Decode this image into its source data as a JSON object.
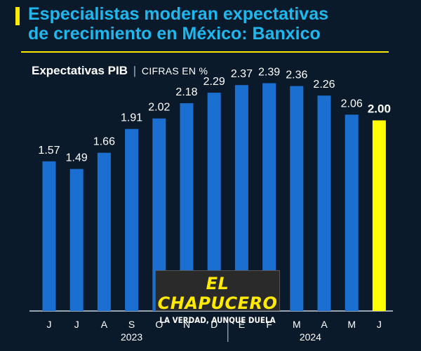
{
  "header": {
    "title_line1": "Especialistas moderan expectativas",
    "title_line2": "de crecimiento en México: Banxico",
    "subtitle": "Expectativas PIB",
    "separator": "|",
    "unit": "CIFRAS EN %"
  },
  "watermark": {
    "brand": "EL CHAPUCERO",
    "tagline": "LA VERDAD, AUNQUE DUELA"
  },
  "colors": {
    "background": "#0b1a2b",
    "bar": "#1a6fd0",
    "highlight_bar": "#ffff00",
    "title": "#1fb8ee",
    "accent": "#ffea00"
  },
  "chart_data": {
    "type": "bar",
    "categories": [
      "J",
      "J",
      "A",
      "S",
      "O",
      "N",
      "D",
      "E",
      "F",
      "M",
      "A",
      "M",
      "J"
    ],
    "values": [
      1.57,
      1.49,
      1.66,
      1.91,
      2.02,
      2.18,
      2.29,
      2.37,
      2.39,
      2.36,
      2.26,
      2.06,
      2.0
    ],
    "value_labels": [
      "1.57",
      "1.49",
      "1.66",
      "1.91",
      "2.02",
      "2.18",
      "2.29",
      "2.37",
      "2.39",
      "2.36",
      "2.26",
      "2.06",
      "2.00"
    ],
    "highlight_index": 12,
    "year_groups": [
      {
        "label": "2023",
        "start": 0,
        "end": 6
      },
      {
        "label": "2024",
        "start": 7,
        "end": 12
      }
    ],
    "title": "Expectativas PIB",
    "ylabel": "",
    "xlabel": "",
    "ylim": [
      0,
      2.6
    ],
    "grid": false
  }
}
